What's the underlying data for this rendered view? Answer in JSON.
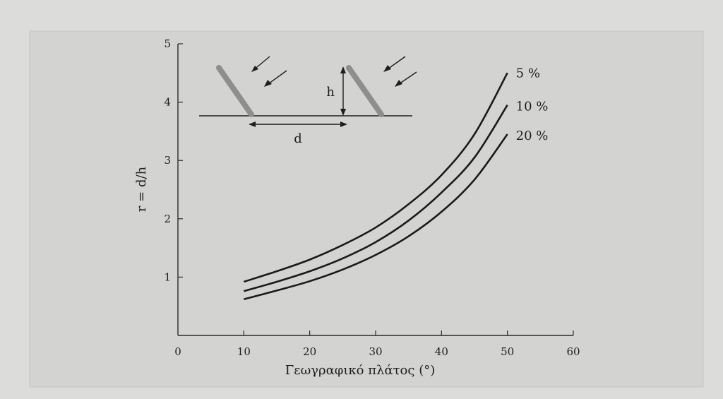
{
  "chart_data": {
    "type": "line",
    "title": "",
    "xlabel": "Γεωγραφικό πλάτος (°)",
    "ylabel": "r = d/h",
    "xlim": [
      0,
      60
    ],
    "ylim": [
      0,
      5
    ],
    "x_ticks": [
      "0",
      "10",
      "20",
      "30",
      "40",
      "50",
      "60"
    ],
    "y_ticks": [
      "1",
      "2",
      "3",
      "4",
      "5"
    ],
    "grid": false,
    "legend": "inline labels at line ends (right)",
    "x": [
      10,
      15,
      20,
      25,
      30,
      35,
      40,
      45,
      50
    ],
    "series": [
      {
        "name": "5 %",
        "values": [
          0.92,
          1.1,
          1.3,
          1.55,
          1.85,
          2.25,
          2.75,
          3.45,
          4.5
        ]
      },
      {
        "name": "10 %",
        "values": [
          0.76,
          0.92,
          1.1,
          1.32,
          1.6,
          1.97,
          2.45,
          3.05,
          3.95
        ]
      },
      {
        "name": "20 %",
        "values": [
          0.62,
          0.77,
          0.93,
          1.13,
          1.38,
          1.7,
          2.12,
          2.67,
          3.45
        ]
      }
    ]
  },
  "inset": {
    "height_label": "h",
    "distance_label": "d"
  }
}
